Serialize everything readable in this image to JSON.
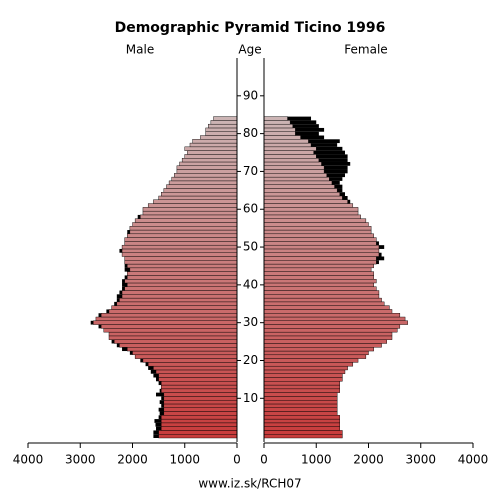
{
  "chart_data": {
    "type": "pyramid",
    "title": "Demographic Pyramid Ticino 1996",
    "y_label": "Age",
    "source": "www.iz.sk/RCH07",
    "ages": [
      0,
      1,
      2,
      3,
      4,
      5,
      6,
      7,
      8,
      9,
      10,
      11,
      12,
      13,
      14,
      15,
      16,
      17,
      18,
      19,
      20,
      21,
      22,
      23,
      24,
      25,
      26,
      27,
      28,
      29,
      30,
      31,
      32,
      33,
      34,
      35,
      36,
      37,
      38,
      39,
      40,
      41,
      42,
      43,
      44,
      45,
      46,
      47,
      48,
      49,
      50,
      51,
      52,
      53,
      54,
      55,
      56,
      57,
      58,
      59,
      60,
      61,
      62,
      63,
      64,
      65,
      66,
      67,
      68,
      69,
      70,
      71,
      72,
      73,
      74,
      75,
      76,
      77,
      78,
      79,
      80,
      81,
      82,
      83,
      84
    ],
    "series": [
      {
        "name": "Male",
        "values": [
          1600,
          1600,
          1550,
          1560,
          1580,
          1500,
          1480,
          1500,
          1450,
          1480,
          1450,
          1550,
          1480,
          1450,
          1500,
          1550,
          1600,
          1650,
          1700,
          1750,
          1850,
          1950,
          2050,
          2200,
          2300,
          2400,
          2450,
          2450,
          2550,
          2650,
          2800,
          2700,
          2650,
          2500,
          2400,
          2350,
          2300,
          2300,
          2250,
          2200,
          2200,
          2200,
          2150,
          2100,
          2150,
          2150,
          2150,
          2150,
          2200,
          2250,
          2200,
          2150,
          2150,
          2100,
          2100,
          2050,
          2000,
          1950,
          1900,
          1800,
          1800,
          1700,
          1600,
          1500,
          1450,
          1400,
          1350,
          1300,
          1250,
          1200,
          1150,
          1150,
          1100,
          1050,
          1000,
          950,
          1000,
          900,
          850,
          700,
          600,
          600,
          550,
          500,
          450
        ]
      },
      {
        "name": "Female",
        "values": [
          1500,
          1500,
          1450,
          1450,
          1450,
          1450,
          1400,
          1400,
          1400,
          1400,
          1400,
          1400,
          1450,
          1450,
          1450,
          1500,
          1500,
          1550,
          1600,
          1700,
          1800,
          1950,
          2000,
          2100,
          2250,
          2350,
          2450,
          2450,
          2550,
          2600,
          2750,
          2700,
          2600,
          2450,
          2400,
          2300,
          2250,
          2200,
          2200,
          2150,
          2100,
          2150,
          2100,
          2100,
          2050,
          2100,
          2200,
          2300,
          2250,
          2200,
          2300,
          2200,
          2150,
          2100,
          2050,
          2050,
          2000,
          1950,
          1850,
          1800,
          1800,
          1700,
          1650,
          1600,
          1550,
          1500,
          1500,
          1450,
          1500,
          1550,
          1600,
          1600,
          1650,
          1600,
          1600,
          1550,
          1500,
          1400,
          1450,
          1150,
          1050,
          1150,
          1050,
          1000,
          900
        ]
      }
    ],
    "color_range": [
      "#c83c3c",
      "#ccb4b4"
    ],
    "excess_color": "#000000",
    "xlim": [
      0,
      4000
    ],
    "xticks": [
      0,
      1000,
      2000,
      3000,
      4000
    ],
    "ylim": [
      -0.5,
      100
    ],
    "yticks": [
      10,
      20,
      30,
      40,
      50,
      60,
      70,
      80,
      90
    ]
  }
}
